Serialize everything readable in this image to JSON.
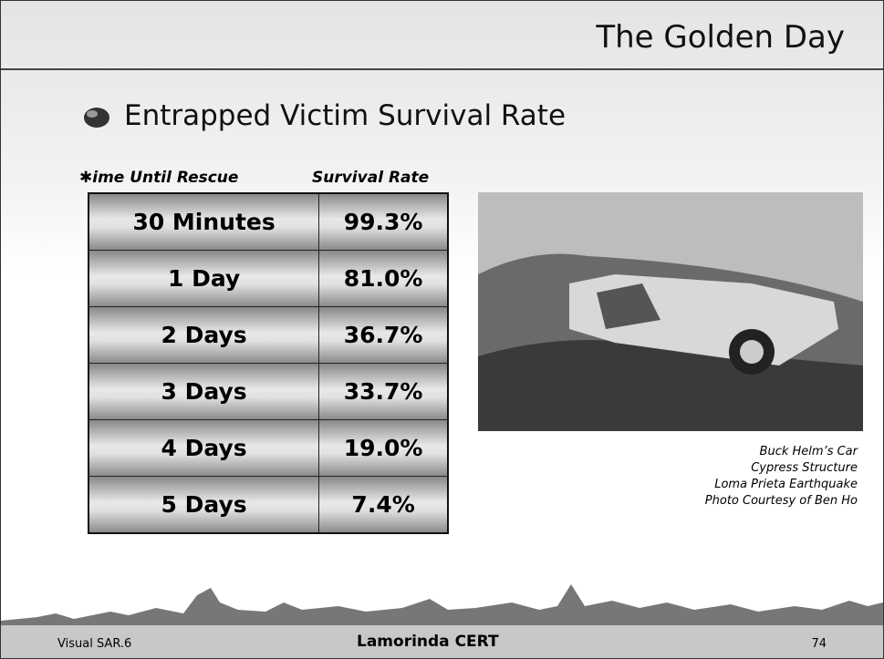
{
  "header": {
    "title": "The Golden Day"
  },
  "heading": "Entrapped Victim Survival Rate",
  "table": {
    "columns": [
      "✱ime Until Rescue",
      "Survival Rate"
    ],
    "rows": [
      [
        "30 Minutes",
        "99.3%"
      ],
      [
        "1 Day",
        "81.0%"
      ],
      [
        "2 Days",
        "36.7%"
      ],
      [
        "3 Days",
        "33.7%"
      ],
      [
        "4 Days",
        "19.0%"
      ],
      [
        "5 Days",
        "7.4%"
      ]
    ]
  },
  "caption": [
    "Buck Helm’s Car",
    "Cypress Structure",
    "Loma Prieta Earthquake",
    "Photo Courtesy of Ben Ho"
  ],
  "footer": {
    "left": "Visual SAR.6",
    "center": "Lamorinda CERT",
    "right": "74"
  }
}
